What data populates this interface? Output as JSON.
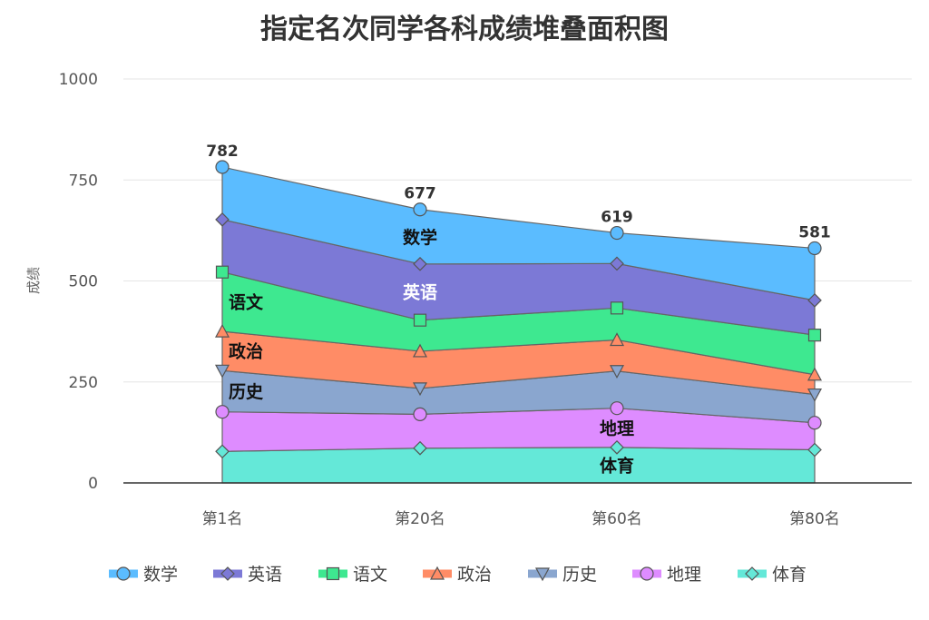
{
  "chart_data": {
    "type": "area",
    "stacked": true,
    "title": "指定名次同学各科成绩堆叠面积图",
    "xlabel": "",
    "ylabel": "成绩",
    "ylim": [
      0,
      1000
    ],
    "yticks": [
      "0",
      "250",
      "500",
      "750",
      "1000"
    ],
    "categories": [
      "第1名",
      "第20名",
      "第60名",
      "第80名"
    ],
    "grid": true,
    "legend": "bottom",
    "series": [
      {
        "name": "体育",
        "values": [
          78,
          86,
          88,
          82
        ],
        "color": "#64e8d8",
        "marker": "diamond",
        "label": {
          "text": "体育",
          "index": 2,
          "color": "#111111"
        }
      },
      {
        "name": "地理",
        "values": [
          98,
          84,
          97,
          67
        ],
        "color": "#de8cff",
        "marker": "circle",
        "label": {
          "text": "地理",
          "index": 2,
          "color": "#111111"
        }
      },
      {
        "name": "历史",
        "values": [
          102,
          64,
          92,
          70
        ],
        "color": "#8aa6cf",
        "marker": "triangle-down",
        "label": {
          "text": "历史",
          "index": 0,
          "color": "#111111"
        }
      },
      {
        "name": "政治",
        "values": [
          97,
          92,
          77,
          49
        ],
        "color": "#ff8c66",
        "marker": "triangle",
        "label": {
          "text": "政治",
          "index": 0,
          "color": "#111111"
        }
      },
      {
        "name": "语文",
        "values": [
          147,
          77,
          79,
          98
        ],
        "color": "#3ee890",
        "marker": "square",
        "label": {
          "text": "语文",
          "index": 0,
          "color": "#111111"
        }
      },
      {
        "name": "英语",
        "values": [
          130,
          139,
          110,
          86
        ],
        "color": "#7c79d6",
        "marker": "diamond",
        "label": {
          "text": "英语",
          "index": 1,
          "color": "#ffffff"
        }
      },
      {
        "name": "数学",
        "values": [
          130,
          135,
          76,
          129
        ],
        "color": "#5bbcff",
        "marker": "circle",
        "label": {
          "text": "数学",
          "index": 1,
          "color": "#111111"
        }
      }
    ],
    "totals": [
      "782",
      "677",
      "619",
      "581"
    ],
    "legend_order": [
      "数学",
      "英语",
      "语文",
      "政治",
      "历史",
      "地理",
      "体育"
    ]
  }
}
